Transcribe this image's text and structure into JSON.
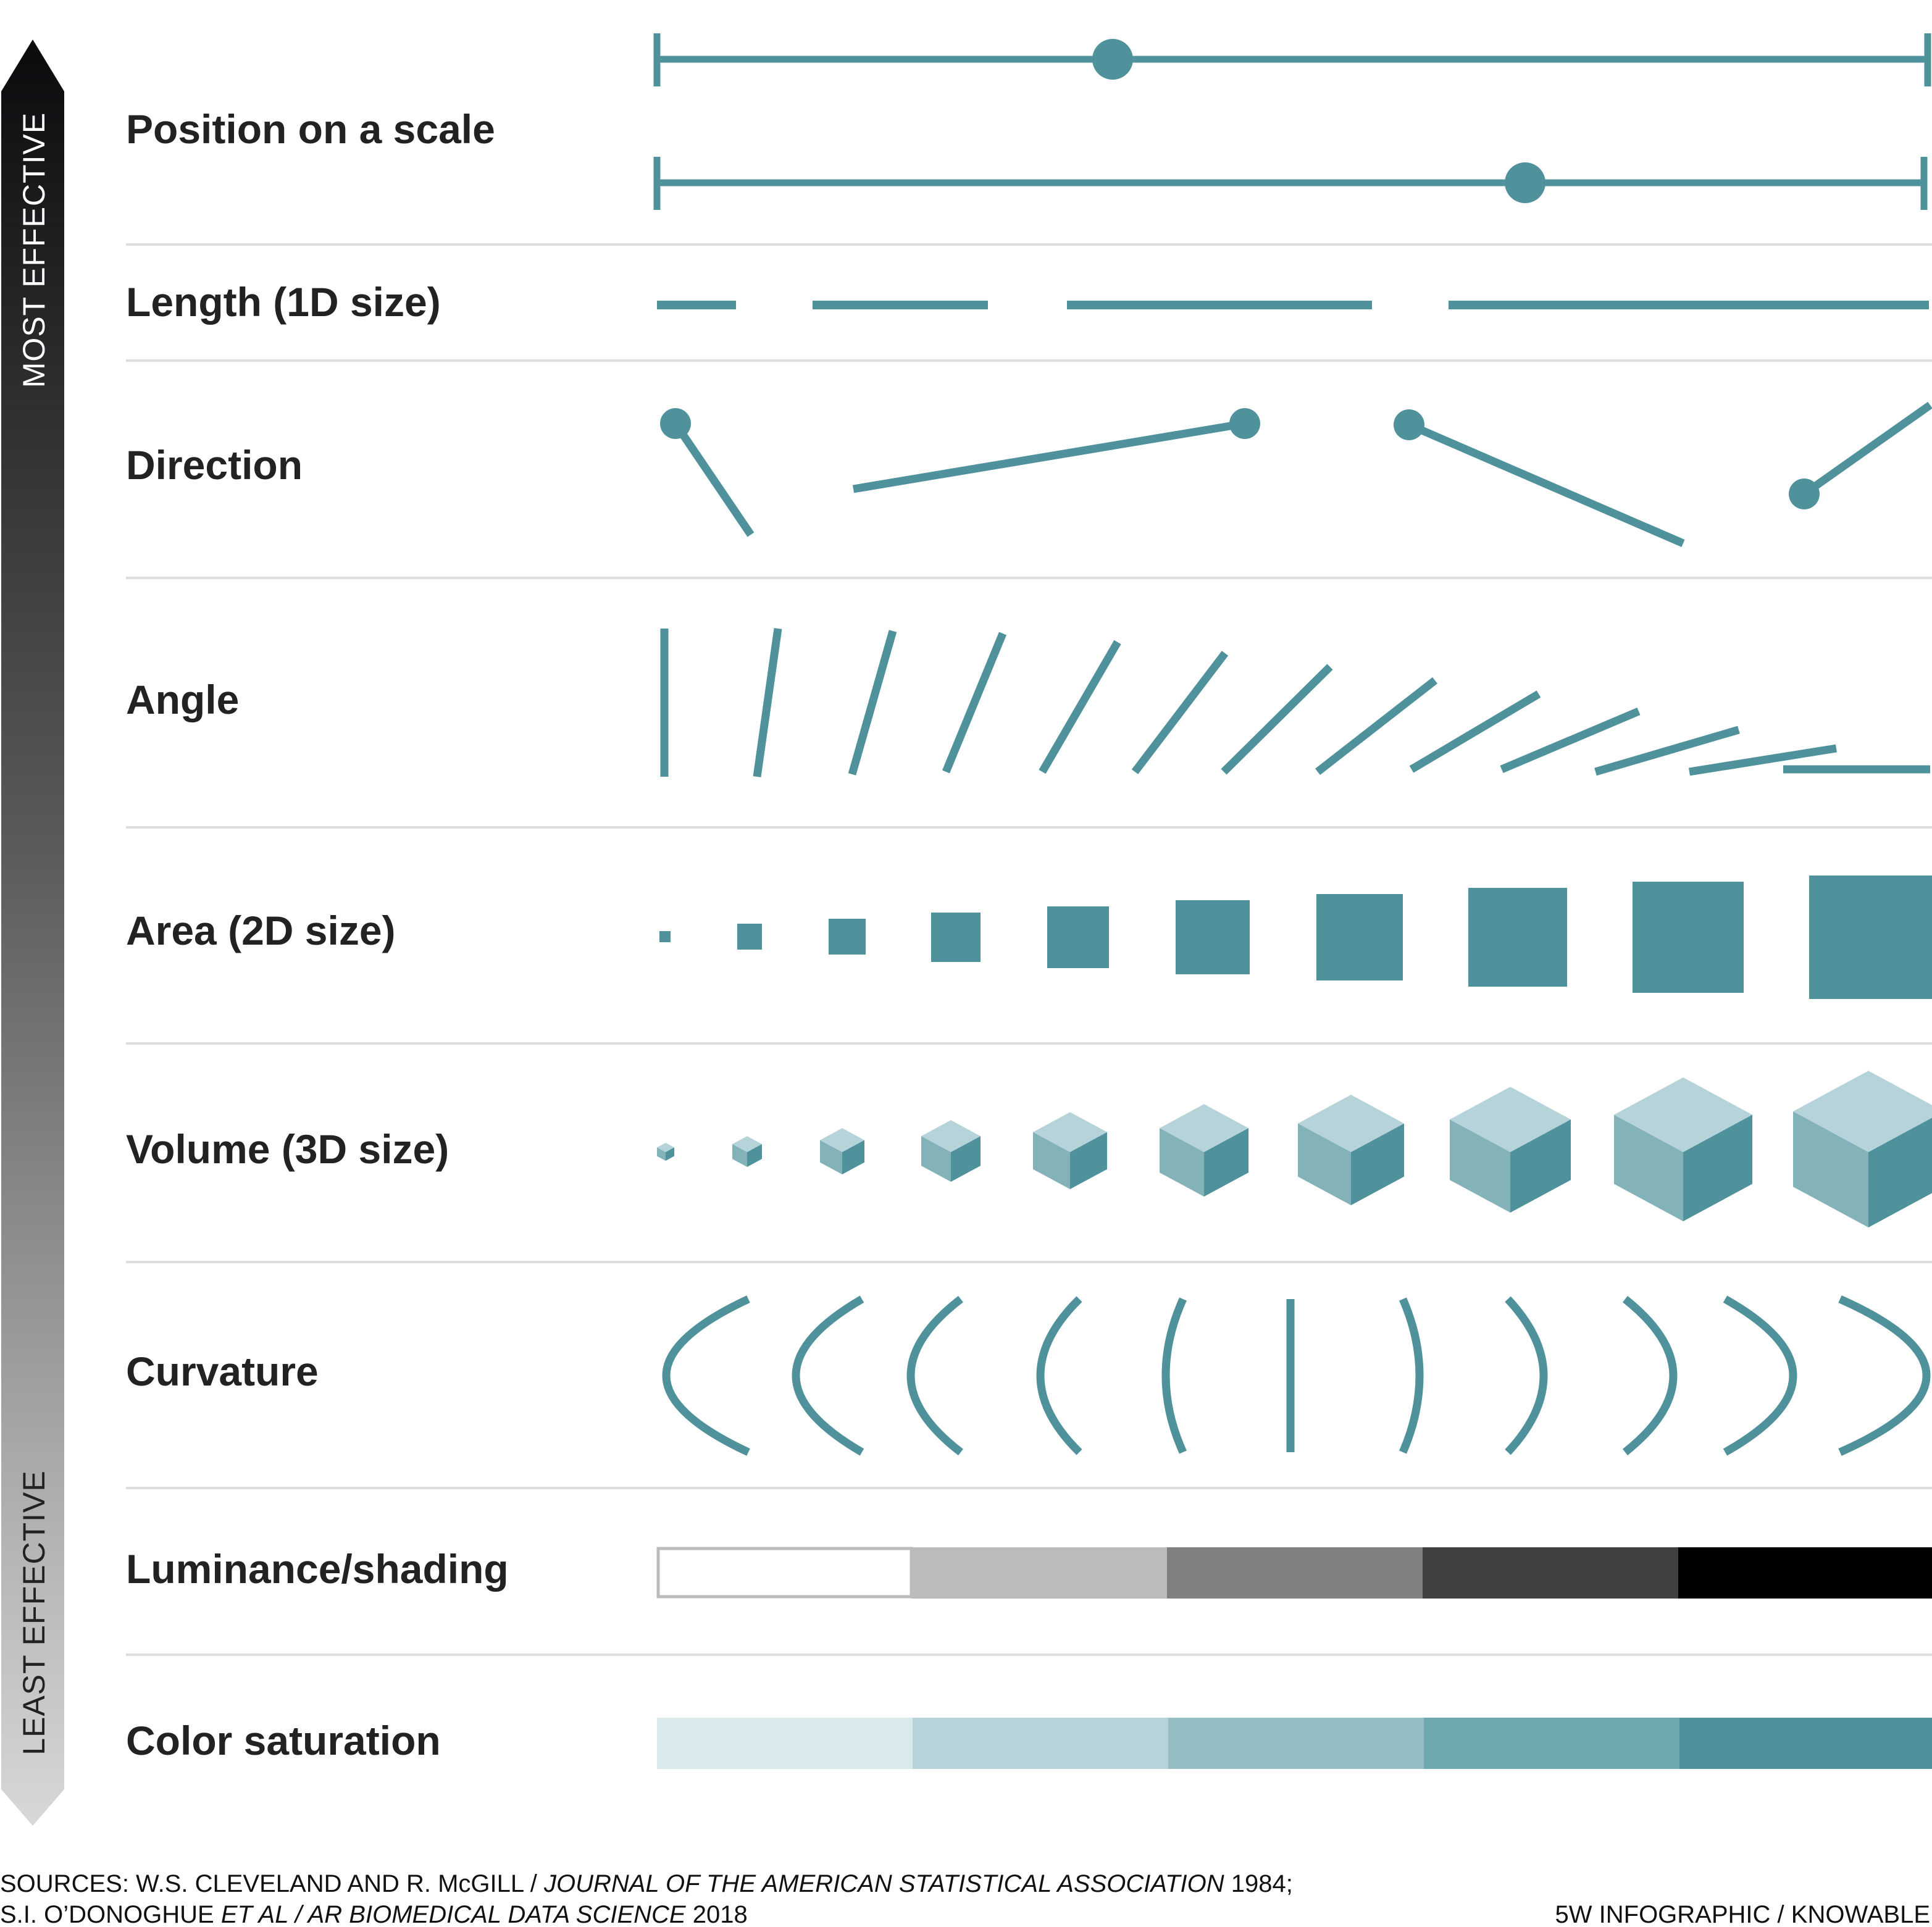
{
  "arrow": {
    "top_label": "MOST EFFECTIVE",
    "bottom_label": "LEAST EFFECTIVE"
  },
  "rows": [
    {
      "key": "position",
      "label": "Position on a scale"
    },
    {
      "key": "length",
      "label": "Length (1D size)"
    },
    {
      "key": "direction",
      "label": "Direction"
    },
    {
      "key": "angle",
      "label": "Angle"
    },
    {
      "key": "area",
      "label": "Area (2D size)"
    },
    {
      "key": "volume",
      "label": "Volume (3D size)"
    },
    {
      "key": "curvature",
      "label": "Curvature"
    },
    {
      "key": "luminance",
      "label": "Luminance/shading"
    },
    {
      "key": "saturation",
      "label": "Color saturation"
    }
  ],
  "colors": {
    "accent": "#4F929C",
    "cube_top": "#B5D3D8",
    "cube_left": "#84B2B9",
    "cube_right": "#4F929C",
    "divider": "#DDDDDD",
    "luminance": [
      "#FFFFFF",
      "#BBBBBB",
      "#808080",
      "#404040",
      "#000000"
    ],
    "saturation": [
      "#DAE9EB",
      "#B5D3D8",
      "#95BEC4",
      "#70A8B0",
      "#4F929C"
    ]
  },
  "sources": {
    "line1_a": "SOURCES: W.S. CLEVELAND AND R. McGILL / ",
    "line1_b": "JOURNAL OF THE AMERICAN STATISTICAL ASSOCIATION",
    "line1_c": " 1984;",
    "line2_a": "S.I. O’DONOGHUE ",
    "line2_b": "ET AL / AR BIOMEDICAL DATA SCIENCE",
    "line2_c": " 2018",
    "credit": "5W INFOGRAPHIC / KNOWABLE"
  }
}
